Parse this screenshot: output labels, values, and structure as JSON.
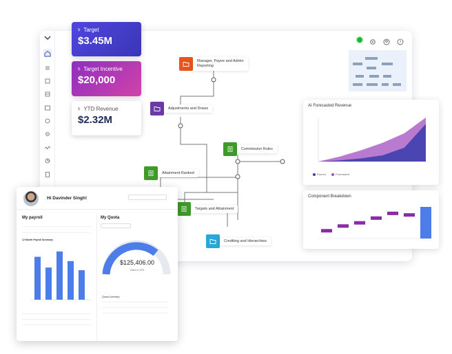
{
  "kpis": {
    "target": {
      "label": "Target",
      "value": "$3.45M"
    },
    "incentive": {
      "label": "Target Incentive",
      "value": "$20,000"
    },
    "ytd": {
      "label": "YTD Revenue",
      "value": "$2.32M"
    }
  },
  "flow_nodes": {
    "manager": {
      "label_line1": "Manager, Payee and Admin",
      "label_line2": "Reporting",
      "color": "#e8541a"
    },
    "adjustments": {
      "label": "Adjustments and Draws",
      "color": "#6c3aa6"
    },
    "commission": {
      "label": "Commission Rules",
      "color": "#3f9a2a"
    },
    "attainment": {
      "label": "Attainment Ranked",
      "color": "#3f9a2a"
    },
    "targets": {
      "label": "Targets and Attainment",
      "color": "#3f9a2a"
    },
    "crediting": {
      "label": "Crediting and Hierarchies",
      "color": "#2aa6d8"
    }
  },
  "forecast_panel": {
    "title": "AI Forecasted Revenue",
    "legend": [
      "Earned",
      "Forecasted"
    ],
    "colors": {
      "earned": "#3f3fae",
      "forecasted": "#a14fbf"
    }
  },
  "breakdown_panel": {
    "title": "Component Breakdown"
  },
  "payroll_panel": {
    "greeting": "Hi Davinder Singh!",
    "my_payroll": "My payroll",
    "my_quota": "My Quota",
    "chart_title": "12 Month Payroll Summary",
    "gauge_amount": "$125,406.00",
    "gauge_sub": "Sales in USD",
    "quota_summary": "Quota Summary",
    "accent": "#4c7de8"
  },
  "chart_data": [
    {
      "type": "area",
      "series": [
        {
          "name": "Earned",
          "values": [
            0,
            2,
            5,
            10,
            22,
            60
          ]
        },
        {
          "name": "Forecasted",
          "values": [
            0,
            8,
            18,
            30,
            45,
            70
          ]
        }
      ]
    },
    {
      "type": "bar",
      "values": [
        0.3,
        0.45,
        0.55,
        0.7,
        0.85,
        0.8,
        1.0
      ]
    },
    {
      "type": "bar",
      "values": [
        80,
        60,
        90,
        72,
        55
      ]
    }
  ],
  "icons": [
    "home-icon",
    "list-icon",
    "tree-icon",
    "chart-icon",
    "target-icon",
    "settings-icon",
    "activity-icon",
    "pie-icon",
    "document-icon",
    "gear-icon",
    "user-icon",
    "help-icon",
    "folder-icon",
    "table-icon"
  ]
}
